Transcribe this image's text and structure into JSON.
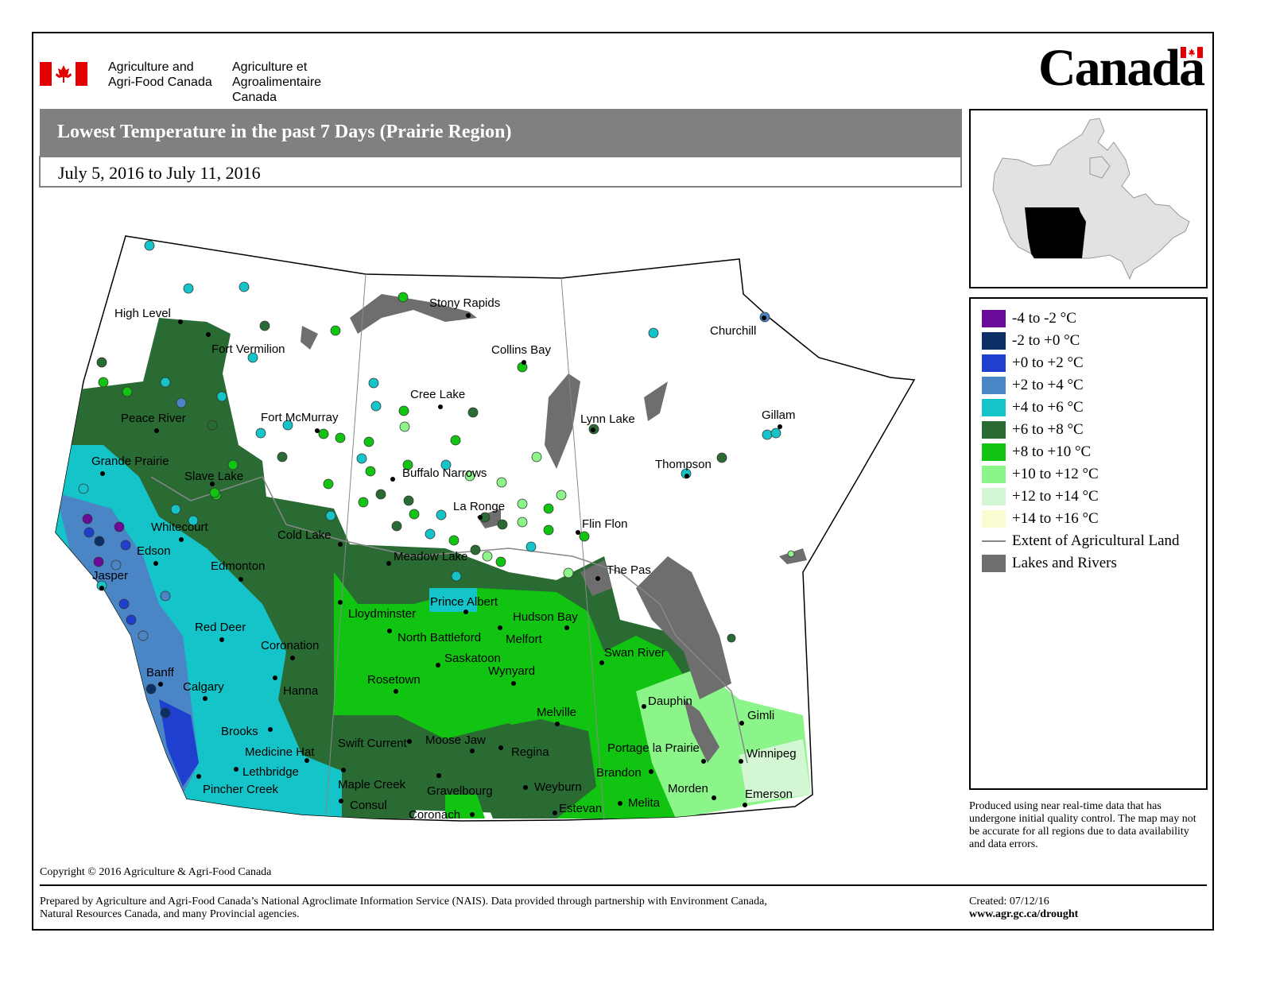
{
  "header": {
    "dept_en": [
      "Agriculture and",
      "Agri-Food Canada"
    ],
    "dept_fr": [
      "Agriculture et",
      "Agroalimentaire Canada"
    ],
    "wordmark": "Canada"
  },
  "title": "Lowest Temperature in the past 7 Days (Prairie Region)",
  "date_range": "July 5, 2016 to July 11, 2016",
  "legend": {
    "items": [
      {
        "label": "-4 to -2 °C",
        "color": "#6a0a9a"
      },
      {
        "label": "-2 to +0 °C",
        "color": "#0c2f66"
      },
      {
        "label": "+0 to +2 °C",
        "color": "#1f3fcf"
      },
      {
        "label": "+2 to +4 °C",
        "color": "#4a86c6"
      },
      {
        "label": "+4 to +6 °C",
        "color": "#14c4c9"
      },
      {
        "label": "+6 to +8 °C",
        "color": "#2a6a33"
      },
      {
        "label": "+8 to +10 °C",
        "color": "#12c412"
      },
      {
        "label": "+10 to +12 °C",
        "color": "#8cf58a"
      },
      {
        "label": "+12 to +14 °C",
        "color": "#d2f7d2"
      },
      {
        "label": "+14 to +16 °C",
        "color": "#fbfbd2"
      },
      {
        "label": "Extent of Agricultural Land",
        "color": "#888888"
      },
      {
        "label": "Lakes and Rivers",
        "color": "#6e6e6e"
      }
    ]
  },
  "cities": [
    "High Level",
    "Fort Vermilion",
    "Peace River",
    "Fort McMurray",
    "Grande Prairie",
    "Slave Lake",
    "Whitecourt",
    "Cold Lake",
    "Edson",
    "Edmonton",
    "Jasper",
    "Meadow Lake",
    "Lloydminster",
    "Prince Albert",
    "Hudson Bay",
    "Red Deer",
    "North Battleford",
    "Melfort",
    "Coronation",
    "Saskatoon",
    "Wynyard",
    "Banff",
    "Calgary",
    "Hanna",
    "Rosetown",
    "Melville",
    "Brooks",
    "Swift Current",
    "Moose Jaw",
    "Regina",
    "Medicine Hat",
    "Lethbridge",
    "Maple Creek",
    "Gravelbourg",
    "Weyburn",
    "Pincher Creek",
    "Consul",
    "Coronach",
    "Estevan",
    "Stony Rapids",
    "Collins Bay",
    "Cree Lake",
    "Buffalo Narrows",
    "La Ronge",
    "Flin Flon",
    "The Pas",
    "Lynn Lake",
    "Churchill",
    "Gillam",
    "Thompson",
    "Swan River",
    "Dauphin",
    "Gimli",
    "Portage la Prairie",
    "Winnipeg",
    "Brandon",
    "Morden",
    "Melita",
    "Emerson"
  ],
  "disclaimer": "Produced using near real-time data that has undergone initial quality control.  The map may not be accurate for all regions due to data availability and data errors.",
  "copyright": "Copyright © 2016 Agriculture & Agri-Food Canada",
  "prepared_by": "Prepared by Agriculture and Agri-Food Canada’s National Agroclimate Information Service (NAIS).   Data provided through partnership with Environment Canada, Natural Resources Canada, and many Provincial agencies.",
  "created": "Created: 07/12/16",
  "website": "www.agr.gc.ca/drought"
}
